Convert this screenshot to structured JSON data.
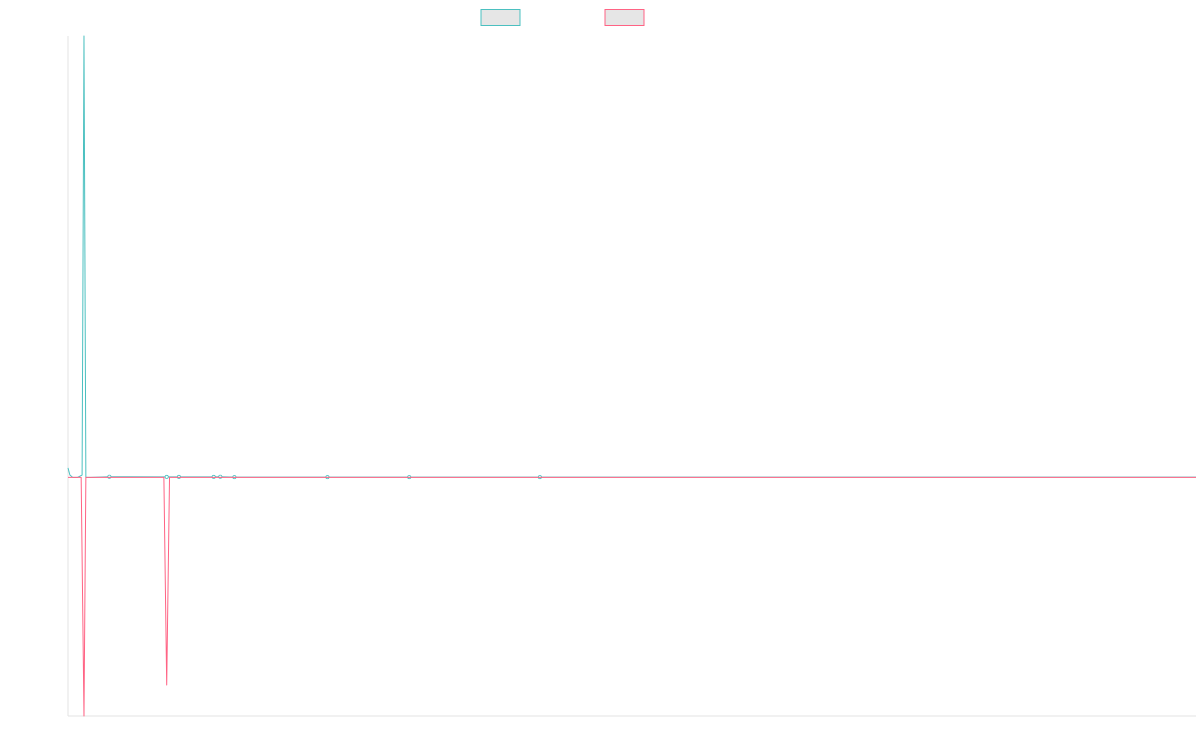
{
  "chart_data": {
    "type": "line",
    "title": "",
    "xlabel": "",
    "ylabel": "",
    "grid": false,
    "legend": "top-center",
    "xlim": [
      0,
      120
    ],
    "ylim": [
      -100,
      185
    ],
    "series": [
      {
        "name": "",
        "color": "#4bc0c0",
        "fill": "#e6e6e6",
        "points": [
          [
            0,
            4
          ],
          [
            0.2,
            1
          ],
          [
            0.5,
            0
          ],
          [
            1,
            0
          ],
          [
            1.5,
            1
          ],
          [
            1.7,
            185
          ],
          [
            1.9,
            0
          ],
          [
            2.4,
            0
          ],
          [
            4.4,
            0.3
          ],
          [
            10.5,
            0.2
          ],
          [
            11.8,
            0.2
          ],
          [
            15.5,
            0.2
          ],
          [
            16.2,
            0.3
          ],
          [
            17.7,
            0.1
          ],
          [
            27.6,
            0.1
          ],
          [
            36.3,
            0.1
          ],
          [
            50.2,
            0.1
          ],
          [
            70,
            0.1
          ],
          [
            90,
            0.1
          ],
          [
            120,
            0.1
          ]
        ],
        "markers": [
          4.4,
          10.5,
          11.8,
          15.5,
          16.2,
          17.7,
          27.6,
          36.3,
          50.2
        ]
      },
      {
        "name": "",
        "color": "#ff6384",
        "fill": "#e6e6e6",
        "points": [
          [
            0,
            0
          ],
          [
            1.4,
            0
          ],
          [
            1.7,
            -100
          ],
          [
            1.9,
            0
          ],
          [
            10.2,
            0
          ],
          [
            10.5,
            -87
          ],
          [
            10.8,
            0
          ],
          [
            20,
            0
          ],
          [
            50,
            0
          ],
          [
            80,
            0
          ],
          [
            120,
            0
          ]
        ],
        "markers": []
      }
    ]
  }
}
